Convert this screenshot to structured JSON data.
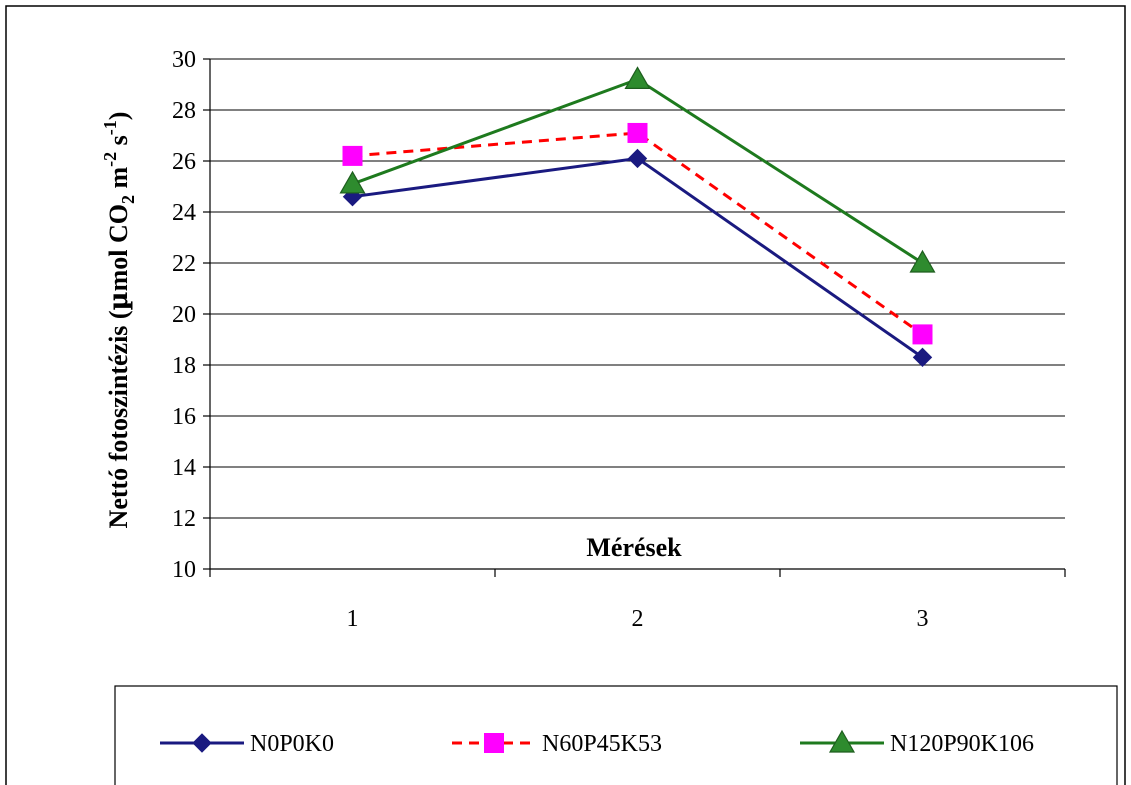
{
  "chart_data": {
    "type": "line",
    "categories": [
      "1",
      "2",
      "3"
    ],
    "xlabel": "Mérések",
    "ylabel": "Nettó fotoszintézis (µmol CO2 m-2 s-1)",
    "ylim": [
      10,
      30
    ],
    "y_ticks": [
      "10",
      "12",
      "14",
      "16",
      "18",
      "20",
      "22",
      "24",
      "26",
      "28",
      "30"
    ],
    "grid": true,
    "legend_position": "bottom",
    "series": [
      {
        "name": "N0P0K0",
        "values": [
          24.6,
          26.1,
          18.3
        ],
        "color": "#1a1a80",
        "marker": "diamond",
        "dash": "solid"
      },
      {
        "name": "N60P45K53",
        "values": [
          26.2,
          27.1,
          19.2
        ],
        "color": "#ff0000",
        "marker_color": "#ff00ff",
        "marker": "square",
        "dash": "dashed"
      },
      {
        "name": "N120P90K106",
        "values": [
          25.1,
          29.2,
          22.0
        ],
        "color": "#1e7a1e",
        "marker_color": "#2e8b2e",
        "marker": "triangle",
        "dash": "solid"
      }
    ]
  },
  "axis_labels": {
    "y_text": "Nettó fotoszintézis (",
    "y_mu": "µ",
    "y_rest": "mol CO",
    "y_sub": "2",
    "y_m": " m",
    "y_sup1": "-2",
    "y_s": " s",
    "y_sup2": "-1",
    "y_close": ")"
  }
}
